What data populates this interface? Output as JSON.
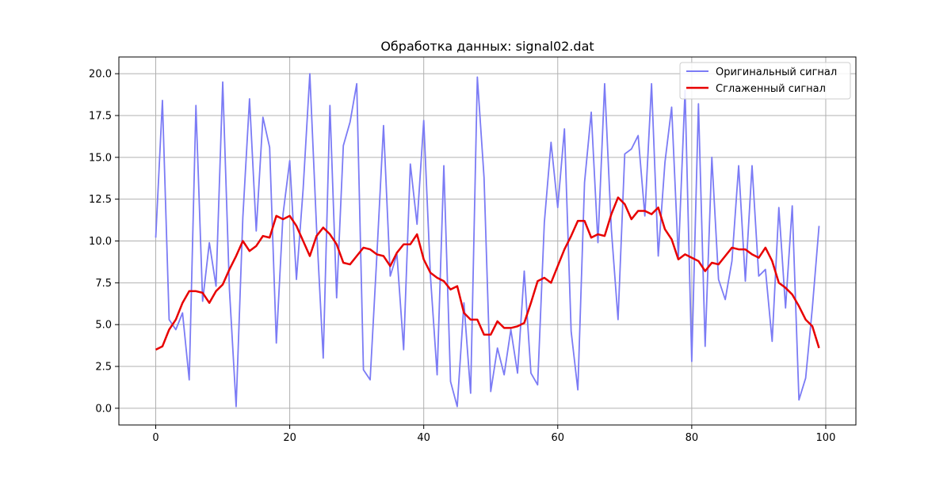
{
  "chart_data": {
    "type": "line",
    "title": "Обработка данных: signal02.dat",
    "xlabel": "",
    "ylabel": "",
    "xlim": [
      -5.5,
      104.5
    ],
    "ylim": [
      -1.0,
      21.0
    ],
    "grid": true,
    "legend_position": "top-right",
    "xticks": [
      0,
      20,
      40,
      60,
      80,
      100
    ],
    "yticks": [
      0.0,
      2.5,
      5.0,
      7.5,
      10.0,
      12.5,
      15.0,
      17.5,
      20.0
    ],
    "xtick_labels": [
      "0",
      "20",
      "40",
      "60",
      "80",
      "100"
    ],
    "ytick_labels": [
      "0.0",
      "2.5",
      "5.0",
      "7.5",
      "10.0",
      "12.5",
      "15.0",
      "17.5",
      "20.0"
    ],
    "x": [
      0,
      1,
      2,
      3,
      4,
      5,
      6,
      7,
      8,
      9,
      10,
      11,
      12,
      13,
      14,
      15,
      16,
      17,
      18,
      19,
      20,
      21,
      22,
      23,
      24,
      25,
      26,
      27,
      28,
      29,
      30,
      31,
      32,
      33,
      34,
      35,
      36,
      37,
      38,
      39,
      40,
      41,
      42,
      43,
      44,
      45,
      46,
      47,
      48,
      49,
      50,
      51,
      52,
      53,
      54,
      55,
      56,
      57,
      58,
      59,
      60,
      61,
      62,
      63,
      64,
      65,
      66,
      67,
      68,
      69,
      70,
      71,
      72,
      73,
      74,
      75,
      76,
      77,
      78,
      79,
      80,
      81,
      82,
      83,
      84,
      85,
      86,
      87,
      88,
      89,
      90,
      91,
      92,
      93,
      94,
      95,
      96,
      97,
      98,
      99
    ],
    "series": [
      {
        "name": "Оригинальный сигнал",
        "color": "#7b7bf5",
        "values": [
          10.2,
          18.4,
          5.3,
          4.7,
          5.7,
          1.7,
          18.1,
          6.4,
          9.9,
          7.3,
          19.5,
          7.1,
          0.1,
          11.4,
          18.5,
          10.6,
          17.4,
          15.6,
          3.9,
          11.6,
          14.8,
          7.7,
          13.1,
          20.0,
          10.8,
          3.0,
          18.1,
          6.6,
          15.7,
          17.1,
          19.4,
          2.3,
          1.7,
          9.1,
          16.9,
          7.9,
          9.2,
          3.5,
          14.6,
          11.0,
          17.2,
          7.9,
          2.0,
          14.5,
          1.6,
          0.1,
          6.3,
          0.9,
          19.8,
          13.8,
          1.0,
          3.6,
          2.0,
          4.7,
          2.1,
          8.2,
          2.1,
          1.4,
          11.1,
          15.9,
          12.0,
          16.7,
          4.6,
          1.1,
          13.5,
          17.7,
          9.9,
          19.4,
          10.7,
          5.3,
          15.2,
          15.5,
          16.3,
          11.5,
          19.4,
          9.1,
          14.7,
          18.0,
          9.0,
          19.0,
          2.8,
          18.2,
          3.7,
          15.0,
          7.7,
          6.5,
          8.8,
          14.5,
          7.6,
          14.5,
          7.9,
          8.3,
          4.0,
          12.0,
          6.0,
          12.1,
          0.5,
          1.8,
          6.0,
          10.9
        ]
      },
      {
        "name": "Сглаженный сигнал",
        "color": "#e80000",
        "values": [
          3.5,
          3.7,
          4.7,
          5.3,
          6.3,
          7.0,
          7.0,
          6.9,
          6.3,
          7.0,
          7.4,
          8.3,
          9.1,
          10.0,
          9.4,
          9.7,
          10.3,
          10.2,
          11.5,
          11.3,
          11.5,
          10.9,
          10.0,
          9.1,
          10.3,
          10.8,
          10.4,
          9.8,
          8.7,
          8.6,
          9.1,
          9.6,
          9.5,
          9.2,
          9.1,
          8.5,
          9.3,
          9.8,
          9.8,
          10.4,
          8.9,
          8.1,
          7.8,
          7.6,
          7.1,
          7.3,
          5.7,
          5.3,
          5.3,
          4.4,
          4.4,
          5.2,
          4.8,
          4.8,
          4.9,
          5.1,
          6.3,
          7.6,
          7.8,
          7.5,
          8.5,
          9.5,
          10.3,
          11.2,
          11.2,
          10.2,
          10.4,
          10.3,
          11.6,
          12.6,
          12.2,
          11.3,
          11.8,
          11.8,
          11.6,
          12.0,
          10.7,
          10.1,
          8.9,
          9.2,
          9.0,
          8.8,
          8.2,
          8.7,
          8.6,
          9.1,
          9.6,
          9.5,
          9.5,
          9.2,
          9.0,
          9.6,
          8.8,
          7.5,
          7.2,
          6.8,
          6.1,
          5.3,
          4.9,
          3.6
        ]
      }
    ]
  }
}
